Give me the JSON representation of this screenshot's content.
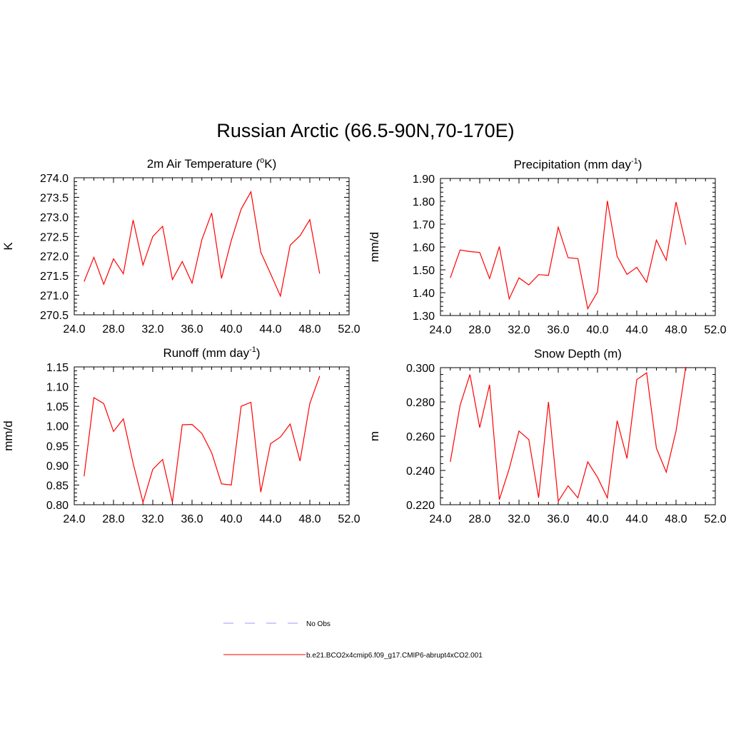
{
  "title": "Russian Arctic (66.5-90N,70-170E)",
  "colors": {
    "model_line": "#ff0000",
    "obs_line": "#9999ff",
    "axis": "#000000"
  },
  "legend": [
    {
      "label": "No Obs",
      "style": "dashed",
      "color": "#9999ff"
    },
    {
      "label": "b.e21.BCO2x4cmip6.f09_g17.CMIP6-abrupt4xCO2.001",
      "style": "solid",
      "color": "#ff0000"
    }
  ],
  "chart_data": [
    {
      "type": "line",
      "title": "2m Air Temperature (",
      "title_sup": "o",
      "title_suffix": "K)",
      "ylabel": "K",
      "xlim": [
        24,
        52
      ],
      "ylim": [
        270.5,
        274.0
      ],
      "xticks": [
        "24.0",
        "28.0",
        "32.0",
        "36.0",
        "40.0",
        "44.0",
        "48.0",
        "52.0"
      ],
      "yticks": [
        "270.5",
        "271.0",
        "271.5",
        "272.0",
        "272.5",
        "273.0",
        "273.5",
        "274.0"
      ],
      "x": [
        25,
        26,
        27,
        28,
        29,
        30,
        31,
        32,
        33,
        34,
        35,
        36,
        37,
        38,
        39,
        40,
        41,
        42,
        43,
        44,
        45,
        46,
        47,
        48,
        49
      ],
      "values": [
        271.35,
        271.97,
        271.28,
        271.93,
        271.55,
        272.92,
        271.77,
        272.5,
        272.76,
        271.4,
        271.86,
        271.31,
        272.42,
        273.1,
        271.43,
        272.4,
        273.2,
        273.64,
        272.1,
        271.55,
        270.98,
        272.28,
        272.52,
        272.93,
        271.55
      ]
    },
    {
      "type": "line",
      "title": "Precipitation (mm day",
      "title_sup": "-1",
      "title_suffix": ")",
      "ylabel": "mm/d",
      "xlim": [
        24,
        52
      ],
      "ylim": [
        1.3,
        1.9
      ],
      "xticks": [
        "24.0",
        "28.0",
        "32.0",
        "36.0",
        "40.0",
        "44.0",
        "48.0",
        "52.0"
      ],
      "yticks": [
        "1.30",
        "1.40",
        "1.50",
        "1.60",
        "1.70",
        "1.80",
        "1.90"
      ],
      "x": [
        25,
        26,
        27,
        28,
        29,
        30,
        31,
        32,
        33,
        34,
        35,
        36,
        37,
        38,
        39,
        40,
        41,
        42,
        43,
        44,
        45,
        46,
        47,
        48,
        49
      ],
      "values": [
        1.465,
        1.587,
        1.58,
        1.576,
        1.462,
        1.602,
        1.373,
        1.465,
        1.434,
        1.479,
        1.476,
        1.687,
        1.553,
        1.549,
        1.33,
        1.403,
        1.802,
        1.559,
        1.48,
        1.511,
        1.446,
        1.63,
        1.542,
        1.797,
        1.61
      ]
    },
    {
      "type": "line",
      "title": "Runoff (mm day",
      "title_sup": "-1",
      "title_suffix": ")",
      "ylabel": "mm/d",
      "xlim": [
        24,
        52
      ],
      "ylim": [
        0.8,
        1.15
      ],
      "xticks": [
        "24.0",
        "28.0",
        "32.0",
        "36.0",
        "40.0",
        "44.0",
        "48.0",
        "52.0"
      ],
      "yticks": [
        "0.80",
        "0.85",
        "0.90",
        "0.95",
        "1.00",
        "1.05",
        "1.10",
        "1.15"
      ],
      "x": [
        25,
        26,
        27,
        28,
        29,
        30,
        31,
        32,
        33,
        34,
        35,
        36,
        37,
        38,
        39,
        40,
        41,
        42,
        43,
        44,
        45,
        46,
        47,
        48,
        49
      ],
      "values": [
        0.872,
        1.072,
        1.057,
        0.986,
        1.018,
        0.905,
        0.806,
        0.89,
        0.915,
        0.806,
        1.003,
        1.004,
        0.981,
        0.932,
        0.853,
        0.85,
        1.05,
        1.06,
        0.832,
        0.955,
        0.972,
        1.005,
        0.911,
        1.057,
        1.127
      ]
    },
    {
      "type": "line",
      "title": "Snow Depth (m)",
      "title_sup": "",
      "title_suffix": "",
      "ylabel": "m",
      "xlim": [
        24,
        52
      ],
      "ylim": [
        0.22,
        0.3
      ],
      "xticks": [
        "24.0",
        "28.0",
        "32.0",
        "36.0",
        "40.0",
        "44.0",
        "48.0",
        "52.0"
      ],
      "yticks": [
        "0.220",
        "0.240",
        "0.260",
        "0.280",
        "0.300"
      ],
      "x": [
        25,
        26,
        27,
        28,
        29,
        30,
        31,
        32,
        33,
        34,
        35,
        36,
        37,
        38,
        39,
        40,
        41,
        42,
        43,
        44,
        45,
        46,
        47,
        48,
        49
      ],
      "values": [
        0.245,
        0.278,
        0.296,
        0.265,
        0.29,
        0.223,
        0.241,
        0.263,
        0.258,
        0.224,
        0.28,
        0.222,
        0.231,
        0.224,
        0.245,
        0.236,
        0.224,
        0.269,
        0.247,
        0.293,
        0.297,
        0.253,
        0.239,
        0.263,
        0.301
      ]
    }
  ]
}
